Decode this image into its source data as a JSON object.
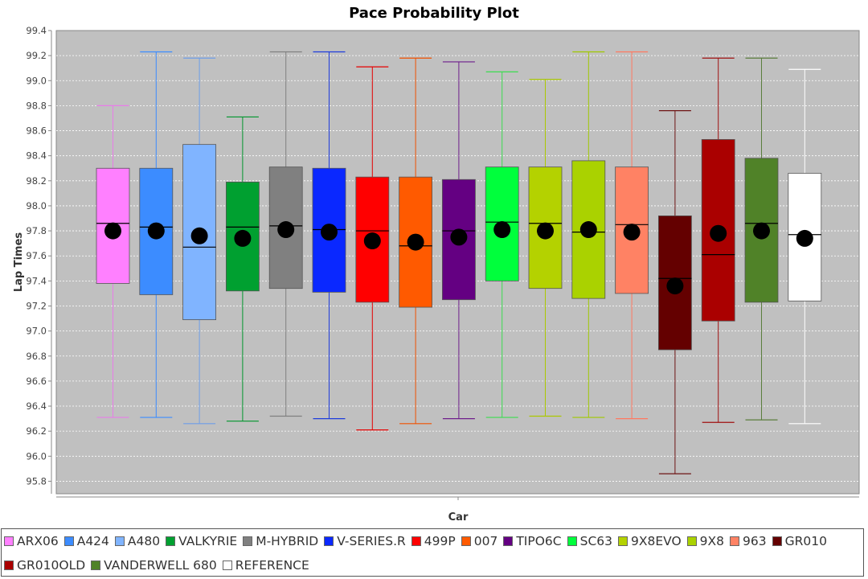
{
  "chart_data": {
    "type": "box",
    "title": "Pace Probability Plot",
    "xlabel": "Car",
    "ylabel": "Lap Times",
    "ylim": [
      95.7,
      99.4
    ],
    "yticks": [
      "95.8",
      "96.0",
      "96.2",
      "96.4",
      "96.6",
      "96.8",
      "97.0",
      "97.2",
      "97.4",
      "97.6",
      "97.8",
      "98.0",
      "98.2",
      "98.4",
      "98.6",
      "98.8",
      "99.0",
      "99.2",
      "99.4"
    ],
    "grid": true,
    "legend_placement": "bottom",
    "series": [
      {
        "name": "ARX06",
        "color": "#ff80ff",
        "stroke": "#e87ce8",
        "min": 96.31,
        "q1": 97.38,
        "median": 97.86,
        "q3": 98.3,
        "max": 98.8,
        "mean": 97.8
      },
      {
        "name": "A424",
        "color": "#3c8cff",
        "stroke": "#3c8cff",
        "min": 96.31,
        "q1": 97.29,
        "median": 97.83,
        "q3": 98.3,
        "max": 99.23,
        "mean": 97.8
      },
      {
        "name": "A480",
        "color": "#80b4ff",
        "stroke": "#6e9ee8",
        "min": 96.26,
        "q1": 97.09,
        "median": 97.67,
        "q3": 98.49,
        "max": 99.18,
        "mean": 97.76
      },
      {
        "name": "VALKYRIE",
        "color": "#00a030",
        "stroke": "#00962c",
        "min": 96.28,
        "q1": 97.32,
        "median": 97.83,
        "q3": 98.19,
        "max": 98.71,
        "mean": 97.74
      },
      {
        "name": "M-HYBRID",
        "color": "#808080",
        "stroke": "#808080",
        "min": 96.32,
        "q1": 97.34,
        "median": 97.84,
        "q3": 98.31,
        "max": 99.23,
        "mean": 97.81
      },
      {
        "name": "V-SERIES.R",
        "color": "#0a28ff",
        "stroke": "#1e3cdc",
        "min": 96.3,
        "q1": 97.31,
        "median": 97.81,
        "q3": 98.3,
        "max": 99.23,
        "mean": 97.79
      },
      {
        "name": "499P",
        "color": "#ff0000",
        "stroke": "#e60000",
        "min": 96.21,
        "q1": 97.23,
        "median": 97.8,
        "q3": 98.23,
        "max": 99.11,
        "mean": 97.72
      },
      {
        "name": "007",
        "color": "#ff5a00",
        "stroke": "#f05000",
        "min": 96.26,
        "q1": 97.19,
        "median": 97.68,
        "q3": 98.23,
        "max": 99.18,
        "mean": 97.71
      },
      {
        "name": "TIPO6C",
        "color": "#640082",
        "stroke": "#6e1e8c",
        "min": 96.3,
        "q1": 97.25,
        "median": 97.8,
        "q3": 98.21,
        "max": 99.15,
        "mean": 97.75
      },
      {
        "name": "SC63",
        "color": "#00ff3c",
        "stroke": "#3cdc50",
        "min": 96.31,
        "q1": 97.4,
        "median": 97.87,
        "q3": 98.31,
        "max": 99.07,
        "mean": 97.81
      },
      {
        "name": "9X8EVO",
        "color": "#b4d200",
        "stroke": "#aac800",
        "min": 96.32,
        "q1": 97.34,
        "median": 97.86,
        "q3": 98.31,
        "max": 99.01,
        "mean": 97.8
      },
      {
        "name": "9X8",
        "color": "#aad200",
        "stroke": "#a0c800",
        "min": 96.31,
        "q1": 97.26,
        "median": 97.79,
        "q3": 98.36,
        "max": 99.23,
        "mean": 97.81
      },
      {
        "name": "963",
        "color": "#ff8264",
        "stroke": "#ff7860",
        "min": 96.3,
        "q1": 97.3,
        "median": 97.85,
        "q3": 98.31,
        "max": 99.23,
        "mean": 97.79
      },
      {
        "name": "GR010",
        "color": "#640000",
        "stroke": "#6e1414",
        "min": 95.86,
        "q1": 96.85,
        "median": 97.42,
        "q3": 97.92,
        "max": 98.76,
        "mean": 97.36
      },
      {
        "name": "GR010OLD",
        "color": "#aa0000",
        "stroke": "#a01010",
        "min": 96.27,
        "q1": 97.08,
        "median": 97.61,
        "q3": 98.53,
        "max": 99.18,
        "mean": 97.78
      },
      {
        "name": "VANDERWELL 680",
        "color": "#508228",
        "stroke": "#5a7d3c",
        "min": 96.29,
        "q1": 97.23,
        "median": 97.86,
        "q3": 98.38,
        "max": 99.18,
        "mean": 97.8
      },
      {
        "name": "REFERENCE",
        "color": "#ffffff",
        "stroke": "#ffffff",
        "min": 96.26,
        "q1": 97.24,
        "median": 97.77,
        "q3": 98.26,
        "max": 99.09,
        "mean": 97.74
      }
    ]
  }
}
